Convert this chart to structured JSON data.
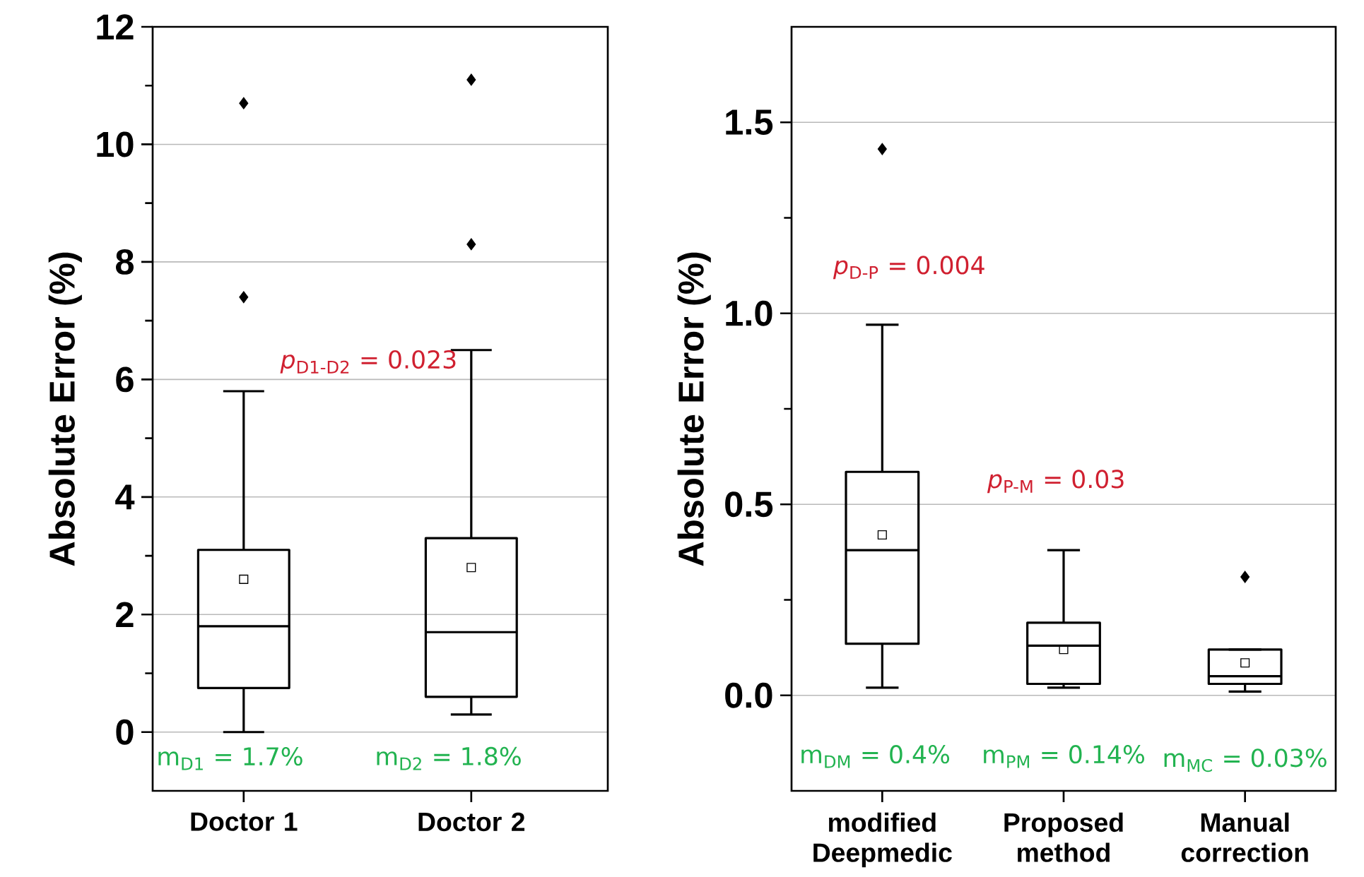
{
  "chart_data": [
    {
      "type": "box",
      "ylabel": "Absolute Error (%)",
      "categories": [
        "Doctor 1",
        "Doctor 2"
      ],
      "boxes": [
        {
          "low": 0,
          "q1": 0.75,
          "median": 1.8,
          "q3": 3.1,
          "high": 5.8,
          "mean": 2.6,
          "outliers": [
            7.4,
            10.7
          ]
        },
        {
          "low": 0.3,
          "q1": 0.6,
          "median": 1.7,
          "q3": 3.3,
          "high": 6.5,
          "mean": 2.8,
          "outliers": [
            8.3,
            11.1
          ]
        }
      ],
      "ylim": [
        -1,
        12
      ],
      "yticks": [
        0,
        2,
        4,
        6,
        8,
        10,
        12
      ],
      "grid": "y",
      "annotations": [
        "*p*$_{D1-D2}$ = 0.023",
        "m$_{D1}$ = 1.7%",
        "m$_{D2}$ = 1.8%"
      ]
    },
    {
      "type": "box",
      "ylabel": "Absolute Error (%)",
      "categories": [
        "modified Deepmedic",
        "Proposed method",
        "Manual correction"
      ],
      "boxes": [
        {
          "low": 0.02,
          "q1": 0.135,
          "median": 0.38,
          "q3": 0.585,
          "high": 0.97,
          "mean": 0.42,
          "outliers": [
            1.43
          ]
        },
        {
          "low": 0.02,
          "q1": 0.03,
          "median": 0.13,
          "q3": 0.19,
          "high": 0.38,
          "mean": 0.12
        },
        {
          "low": 0.01,
          "q1": 0.03,
          "median": 0.05,
          "q3": 0.12,
          "high": 0.12,
          "mean": 0.085,
          "outliers": [
            0.31
          ]
        }
      ],
      "ylim": [
        -0.25,
        1.75
      ],
      "yticks": [
        {
          "value": 0,
          "label": "0.0"
        },
        0.5,
        {
          "value": 1,
          "label": "1.0"
        },
        1.5
      ],
      "grid": "y",
      "annotations": [
        "*p*$_{D-P}$ = 0.004",
        "*p*$_{P-M}$ = 0.03",
        "m$_{DM}$ = 0.4%",
        "m$_{PM}$ = 0.14%",
        "m$_{MC}$ = 0.03%"
      ]
    }
  ]
}
